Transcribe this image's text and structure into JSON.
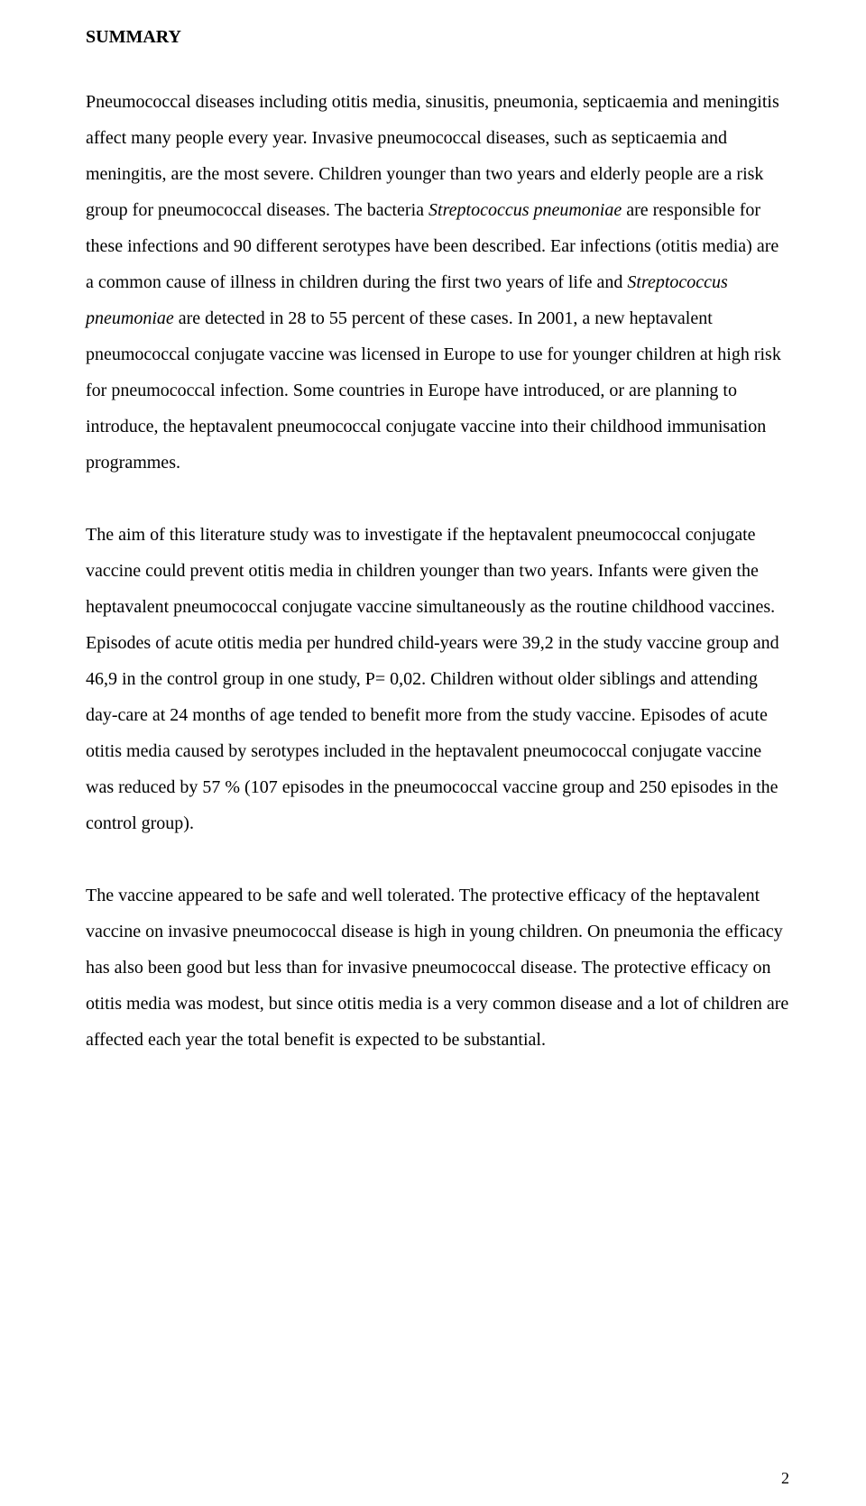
{
  "heading": "SUMMARY",
  "para1_seg1": "Pneumococcal diseases including otitis media, sinusitis, pneumonia, septicaemia and meningitis affect many people every year. Invasive pneumococcal diseases, such as septicaemia and meningitis, are the most severe. Children younger than two years and elderly people are a risk group for pneumococcal diseases. The bacteria ",
  "para1_italic1": "Streptococcus pneumoniae",
  "para1_seg2": " are responsible for these infections  and 90 different serotypes have been described. Ear infections (otitis media) are a common cause of illness in children during the first two years of life and ",
  "para1_italic2": "Streptococcus pneumoniae",
  "para1_seg3": " are detected in 28 to 55 percent of these cases. In 2001, a new heptavalent pneumococcal conjugate vaccine was licensed in Europe to use for younger children at high risk for pneumococcal infection. Some countries in Europe have introduced, or are planning to introduce, the heptavalent pneumococcal conjugate vaccine into their childhood immunisation programmes.",
  "para2": "The aim of this literature study was to investigate if the heptavalent pneumococcal conjugate vaccine could prevent otitis media in children younger than two years. Infants were given the heptavalent pneumococcal conjugate vaccine simultaneously as the routine childhood vaccines. Episodes of acute otitis media per hundred child-years were 39,2 in the study vaccine group and 46,9 in the control group in one study, P= 0,02. Children without older siblings and attending day-care at 24 months of age tended to benefit more from the study vaccine. Episodes of acute otitis media caused by serotypes included in the heptavalent pneumococcal conjugate vaccine was reduced by 57 % (107 episodes in the pneumococcal vaccine group and 250 episodes in the control group).",
  "para3": "The vaccine appeared to be safe and well tolerated. The protective efficacy of the heptavalent vaccine on invasive pneumococcal disease is high in young children. On pneumonia the efficacy has also been good but less than for invasive pneumococcal disease. The protective efficacy on otitis media was modest, but since otitis media is a very common disease and a lot of children are affected each year the total benefit is expected to be substantial.",
  "page_number": "2"
}
